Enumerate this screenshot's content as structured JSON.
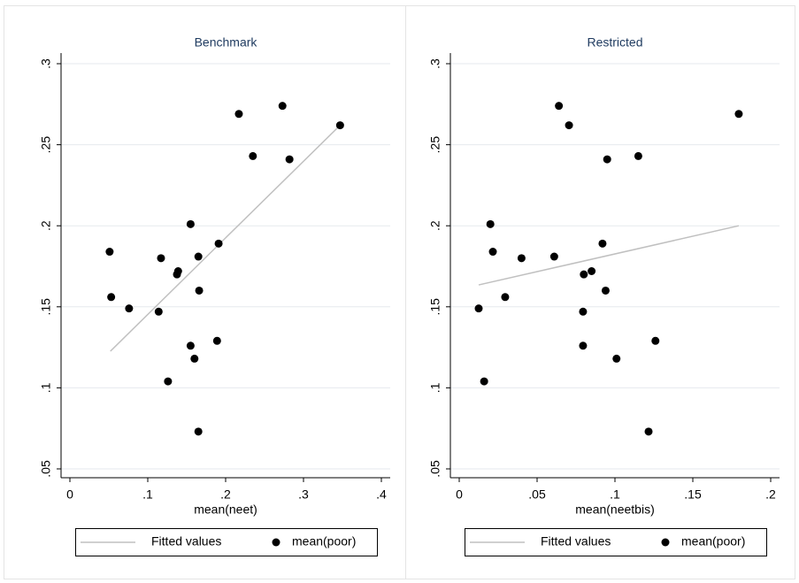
{
  "chart_data": [
    {
      "type": "scatter",
      "title": "Benchmark",
      "x_label": "mean(neet)",
      "xlim": [
        0,
        0.4
      ],
      "ylim": [
        0.05,
        0.3
      ],
      "xticks": [
        0,
        {
          "value": 0.1,
          "label": ".1"
        },
        {
          "value": 0.2,
          "label": ".2"
        },
        {
          "value": 0.3,
          "label": ".3"
        },
        {
          "value": 0.4,
          "label": ".4"
        }
      ],
      "yticks": [
        {
          "value": 0.05,
          "label": ".05"
        },
        {
          "value": 0.1,
          "label": ".1"
        },
        {
          "value": 0.15,
          "label": ".15"
        },
        {
          "value": 0.2,
          "label": ".2"
        },
        {
          "value": 0.25,
          "label": ".25"
        },
        {
          "value": 0.3,
          "label": ".3"
        }
      ],
      "grid": true,
      "series": [
        {
          "name": "Fitted values",
          "type": "line",
          "color": "#c0c0c0",
          "x": [
            0.052,
            0.347
          ],
          "values": [
            0.1226,
            0.262
          ]
        },
        {
          "name": "mean(poor)",
          "type": "scatter",
          "color": "#000000",
          "x": [
            0.051,
            0.053,
            0.076,
            0.117,
            0.114,
            0.139,
            0.1375,
            0.155,
            0.155,
            0.165,
            0.166,
            0.16,
            0.126,
            0.165,
            0.191,
            0.189,
            0.217,
            0.235,
            0.273,
            0.282,
            0.347
          ],
          "values": [
            0.184,
            0.156,
            0.149,
            0.18,
            0.147,
            0.172,
            0.17,
            0.201,
            0.126,
            0.181,
            0.16,
            0.118,
            0.104,
            0.073,
            0.189,
            0.129,
            0.269,
            0.243,
            0.274,
            0.241,
            0.262
          ]
        }
      ]
    },
    {
      "type": "scatter",
      "title": "Restricted",
      "x_label": "mean(neetbis)",
      "xlim": [
        0,
        0.2
      ],
      "ylim": [
        0.05,
        0.3
      ],
      "xticks": [
        0,
        {
          "value": 0.05,
          "label": ".05"
        },
        {
          "value": 0.1,
          "label": ".1"
        },
        {
          "value": 0.15,
          "label": ".15"
        },
        {
          "value": 0.2,
          "label": ".2"
        }
      ],
      "yticks": [
        {
          "value": 0.05,
          "label": ".05"
        },
        {
          "value": 0.1,
          "label": ".1"
        },
        {
          "value": 0.15,
          "label": ".15"
        },
        {
          "value": 0.2,
          "label": ".2"
        },
        {
          "value": 0.25,
          "label": ".25"
        },
        {
          "value": 0.3,
          "label": ".3"
        }
      ],
      "grid": true,
      "series": [
        {
          "name": "Fitted values",
          "type": "line",
          "color": "#c0c0c0",
          "x": [
            0.0125,
            0.1795
          ],
          "values": [
            0.1635,
            0.2
          ]
        },
        {
          "name": "mean(poor)",
          "type": "scatter",
          "color": "#000000",
          "x": [
            0.064,
            0.0705,
            0.02,
            0.0216,
            0.0125,
            0.016,
            0.0295,
            0.04,
            0.061,
            0.08,
            0.085,
            0.092,
            0.094,
            0.095,
            0.115,
            0.0795,
            0.0795,
            0.101,
            0.126,
            0.1216,
            0.1795
          ],
          "values": [
            0.274,
            0.262,
            0.201,
            0.184,
            0.149,
            0.104,
            0.156,
            0.18,
            0.181,
            0.17,
            0.172,
            0.189,
            0.16,
            0.241,
            0.243,
            0.147,
            0.126,
            0.118,
            0.129,
            0.073,
            0.269
          ]
        }
      ]
    }
  ]
}
